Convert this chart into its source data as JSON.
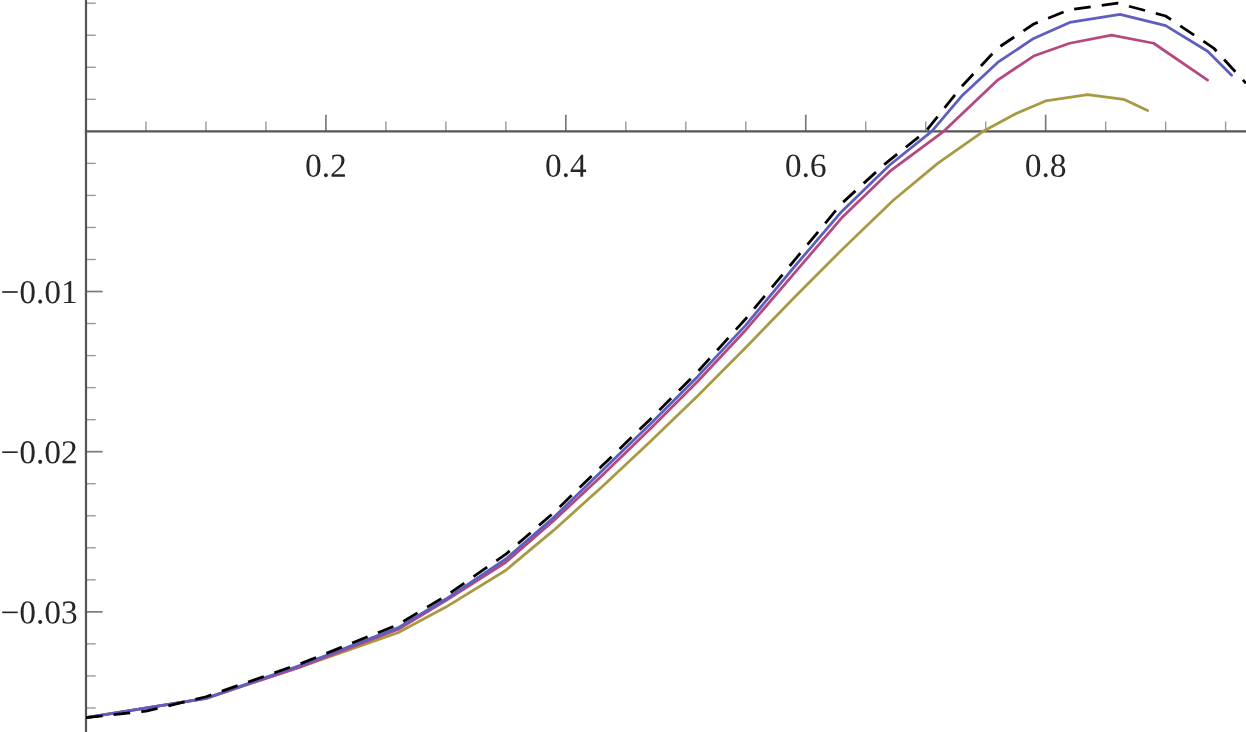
{
  "chart_data": {
    "type": "line",
    "xlim": [
      0,
      0.967
    ],
    "ylim": [
      -0.0375,
      0.0082
    ],
    "xticks": [
      {
        "value": 0.05,
        "label": null
      },
      {
        "value": 0.1,
        "label": null
      },
      {
        "value": 0.15,
        "label": null
      },
      0.2,
      {
        "value": 0.25,
        "label": null
      },
      {
        "value": 0.3,
        "label": null
      },
      {
        "value": 0.35,
        "label": null
      },
      0.4,
      {
        "value": 0.45,
        "label": null
      },
      {
        "value": 0.5,
        "label": null
      },
      {
        "value": 0.55,
        "label": null
      },
      0.6,
      {
        "value": 0.65,
        "label": null
      },
      {
        "value": 0.7,
        "label": null
      },
      {
        "value": 0.75,
        "label": null
      },
      0.8,
      {
        "value": 0.85,
        "label": null
      },
      {
        "value": 0.9,
        "label": null
      },
      {
        "value": 0.95,
        "label": null
      }
    ],
    "yticks": [
      {
        "value": -0.036,
        "label": null
      },
      {
        "value": -0.034,
        "label": null
      },
      {
        "value": -0.032,
        "label": null
      },
      {
        "value": -0.03,
        "label": "−0.03"
      },
      {
        "value": -0.028,
        "label": null
      },
      {
        "value": -0.026,
        "label": null
      },
      {
        "value": -0.024,
        "label": null
      },
      {
        "value": -0.022,
        "label": null
      },
      {
        "value": -0.02,
        "label": "−0.02"
      },
      {
        "value": -0.018,
        "label": null
      },
      {
        "value": -0.016,
        "label": null
      },
      {
        "value": -0.014,
        "label": null
      },
      {
        "value": -0.012,
        "label": null
      },
      {
        "value": -0.01,
        "label": "−0.01"
      },
      {
        "value": -0.008,
        "label": null
      },
      {
        "value": -0.006,
        "label": null
      },
      {
        "value": -0.004,
        "label": null
      },
      {
        "value": -0.002,
        "label": null
      },
      {
        "value": 0.002,
        "label": null
      },
      {
        "value": 0.004,
        "label": null
      },
      {
        "value": 0.006,
        "label": null
      },
      {
        "value": 0.008,
        "label": null
      }
    ],
    "grid": false,
    "legend": false,
    "series": [
      {
        "color": "#000000",
        "line_style": "dashed",
        "x": [
          0,
          0.05,
          0.1,
          0.18,
          0.26,
          0.3,
          0.35,
          0.39,
          0.43,
          0.47,
          0.51,
          0.55,
          0.59,
          0.63,
          0.665,
          0.7,
          0.73,
          0.76,
          0.79,
          0.82,
          0.86,
          0.9,
          0.94,
          0.967
        ],
        "values": [
          -0.0366,
          -0.0362,
          -0.0353,
          -0.0332,
          -0.0308,
          -0.029,
          -0.0264,
          -0.0238,
          -0.0209,
          -0.018,
          -0.015,
          -0.0117,
          -0.0081,
          -0.0045,
          -0.0021,
          0.0,
          0.0028,
          0.0052,
          0.0067,
          0.0076,
          0.008,
          0.0072,
          0.0052,
          0.003
        ]
      },
      {
        "color": "#5e5ec0",
        "line_style": "solid",
        "x": [
          0,
          0.1,
          0.18,
          0.26,
          0.3,
          0.35,
          0.39,
          0.43,
          0.47,
          0.51,
          0.55,
          0.59,
          0.63,
          0.67,
          0.705,
          0.73,
          0.76,
          0.79,
          0.82,
          0.862,
          0.9,
          0.935,
          0.955
        ],
        "values": [
          -0.0366,
          -0.0354,
          -0.0333,
          -0.031,
          -0.0292,
          -0.0267,
          -0.0241,
          -0.0212,
          -0.0183,
          -0.0153,
          -0.0121,
          -0.0085,
          -0.005,
          -0.0021,
          0.0,
          0.0022,
          0.0043,
          0.0058,
          0.0068,
          0.0073,
          0.0066,
          0.005,
          0.0035
        ]
      },
      {
        "color": "#b5487f",
        "line_style": "solid",
        "x": [
          0,
          0.1,
          0.18,
          0.26,
          0.3,
          0.35,
          0.39,
          0.43,
          0.47,
          0.51,
          0.55,
          0.59,
          0.63,
          0.67,
          0.715,
          0.76,
          0.79,
          0.82,
          0.855,
          0.89,
          0.935
        ],
        "values": [
          -0.0366,
          -0.0354,
          -0.0334,
          -0.0311,
          -0.0293,
          -0.0269,
          -0.0243,
          -0.0215,
          -0.0186,
          -0.0156,
          -0.0124,
          -0.0089,
          -0.0054,
          -0.0025,
          0.0,
          0.0032,
          0.0047,
          0.0055,
          0.006,
          0.0055,
          0.0032
        ]
      },
      {
        "color": "#a89a42",
        "line_style": "solid",
        "x": [
          0,
          0.1,
          0.18,
          0.26,
          0.3,
          0.35,
          0.39,
          0.43,
          0.47,
          0.51,
          0.55,
          0.59,
          0.63,
          0.673,
          0.71,
          0.748,
          0.775,
          0.8,
          0.835,
          0.865,
          0.885
        ],
        "values": [
          -0.0366,
          -0.0354,
          -0.0334,
          -0.0313,
          -0.0297,
          -0.0274,
          -0.0249,
          -0.0222,
          -0.0194,
          -0.0165,
          -0.0135,
          -0.0104,
          -0.0074,
          -0.0043,
          -0.002,
          0.0,
          0.0011,
          0.0019,
          0.0023,
          0.002,
          0.0013
        ]
      }
    ]
  }
}
